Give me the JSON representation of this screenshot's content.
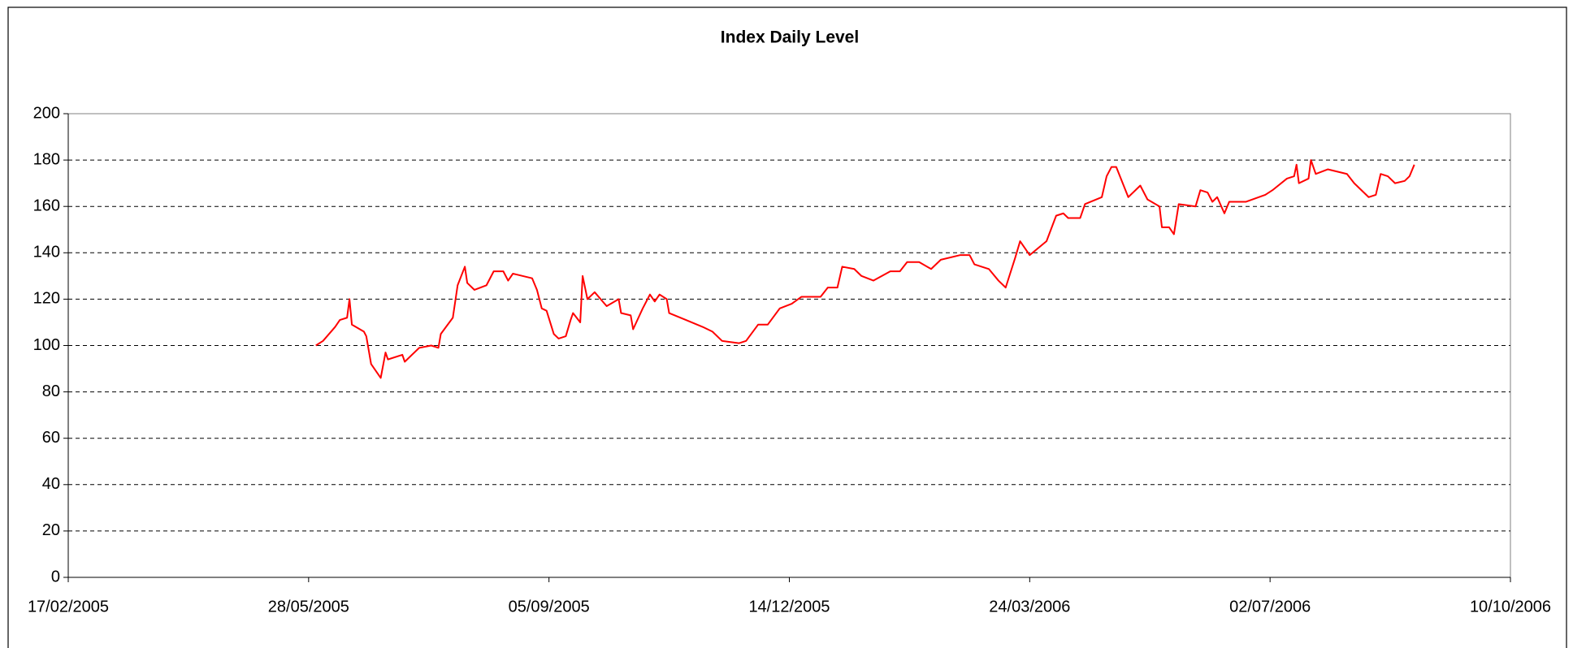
{
  "chart_data": {
    "type": "line",
    "title": "Index Daily Level",
    "x": [
      "2005-05-31",
      "2005-06-03",
      "2005-06-08",
      "2005-06-10",
      "2005-06-13",
      "2005-06-14",
      "2005-06-15",
      "2005-06-20",
      "2005-06-21",
      "2005-06-23",
      "2005-06-27",
      "2005-06-29",
      "2005-06-30",
      "2005-07-06",
      "2005-07-07",
      "2005-07-13",
      "2005-07-18",
      "2005-07-21",
      "2005-07-22",
      "2005-07-27",
      "2005-07-29",
      "2005-08-01",
      "2005-08-02",
      "2005-08-05",
      "2005-08-10",
      "2005-08-13",
      "2005-08-17",
      "2005-08-19",
      "2005-08-21",
      "2005-08-29",
      "2005-08-31",
      "2005-09-02",
      "2005-09-04",
      "2005-09-07",
      "2005-09-09",
      "2005-09-12",
      "2005-09-14",
      "2005-09-15",
      "2005-09-18",
      "2005-09-19",
      "2005-09-21",
      "2005-09-24",
      "2005-09-29",
      "2005-10-04",
      "2005-10-05",
      "2005-10-09",
      "2005-10-10",
      "2005-10-14",
      "2005-10-17",
      "2005-10-19",
      "2005-10-21",
      "2005-10-24",
      "2005-10-25",
      "2005-11-01",
      "2005-11-08",
      "2005-11-12",
      "2005-11-16",
      "2005-11-23",
      "2005-11-26",
      "2005-12-01",
      "2005-12-05",
      "2005-12-10",
      "2005-12-15",
      "2005-12-19",
      "2005-12-27",
      "2005-12-30",
      "2006-01-03",
      "2006-01-05",
      "2006-01-10",
      "2006-01-13",
      "2006-01-18",
      "2006-01-25",
      "2006-01-29",
      "2006-02-01",
      "2006-02-06",
      "2006-02-11",
      "2006-02-15",
      "2006-02-23",
      "2006-02-27",
      "2006-03-01",
      "2006-03-07",
      "2006-03-11",
      "2006-03-14",
      "2006-03-18",
      "2006-03-20",
      "2006-03-24",
      "2006-03-31",
      "2006-04-04",
      "2006-04-07",
      "2006-04-09",
      "2006-04-14",
      "2006-04-16",
      "2006-04-23",
      "2006-04-25",
      "2006-04-27",
      "2006-04-29",
      "2006-05-04",
      "2006-05-09",
      "2006-05-12",
      "2006-05-17",
      "2006-05-18",
      "2006-05-21",
      "2006-05-23",
      "2006-05-25",
      "2006-06-01",
      "2006-06-03",
      "2006-06-06",
      "2006-06-08",
      "2006-06-10",
      "2006-06-13",
      "2006-06-15",
      "2006-06-22",
      "2006-06-30",
      "2006-07-03",
      "2006-07-09",
      "2006-07-12",
      "2006-07-13",
      "2006-07-14",
      "2006-07-18",
      "2006-07-19",
      "2006-07-21",
      "2006-07-26",
      "2006-08-03",
      "2006-08-06",
      "2006-08-12",
      "2006-08-15",
      "2006-08-17",
      "2006-08-20",
      "2006-08-23",
      "2006-08-27",
      "2006-08-29",
      "2006-08-31"
    ],
    "series": [
      {
        "color": "#ff0000",
        "values": [
          100,
          102,
          108,
          111,
          112,
          120,
          109,
          106,
          104,
          92,
          86,
          97,
          94,
          96,
          93,
          99,
          100,
          99,
          105,
          112,
          126,
          134,
          127,
          124,
          126,
          132,
          132,
          128,
          131,
          129,
          124,
          116,
          115,
          105,
          103,
          104,
          111,
          114,
          110,
          130,
          120,
          123,
          117,
          120,
          114,
          113,
          107,
          116,
          122,
          119,
          122,
          120,
          114,
          111,
          108,
          106,
          102,
          101,
          102,
          109,
          109,
          116,
          118,
          121,
          121,
          125,
          125,
          134,
          133,
          130,
          128,
          132,
          132,
          136,
          136,
          133,
          137,
          139,
          139,
          135,
          133,
          128,
          125,
          138,
          145,
          139,
          145,
          156,
          157,
          155,
          155,
          161,
          164,
          173,
          177,
          177,
          164,
          169,
          163,
          160,
          151,
          151,
          148,
          161,
          160,
          167,
          166,
          162,
          164,
          157,
          162,
          162,
          165,
          167,
          172,
          173,
          178,
          170,
          172,
          180,
          174,
          176,
          174,
          170,
          164,
          165,
          174,
          173,
          170,
          171,
          173,
          178
        ]
      }
    ],
    "xlim": [
      "2005-02-17",
      "2006-10-10"
    ],
    "xticks": [
      {
        "value": "2005-02-17",
        "label": "17/02/2005"
      },
      {
        "value": "2005-05-28",
        "label": "28/05/2005"
      },
      {
        "value": "2005-09-05",
        "label": "05/09/2005"
      },
      {
        "value": "2005-12-14",
        "label": "14/12/2005"
      },
      {
        "value": "2006-03-24",
        "label": "24/03/2006"
      },
      {
        "value": "2006-07-02",
        "label": "02/07/2006"
      },
      {
        "value": "2006-10-10",
        "label": "10/10/2006"
      }
    ],
    "ylim": [
      0,
      200
    ],
    "yticks": [
      0,
      20,
      40,
      60,
      80,
      100,
      120,
      140,
      160,
      180,
      200
    ],
    "grid": true
  }
}
